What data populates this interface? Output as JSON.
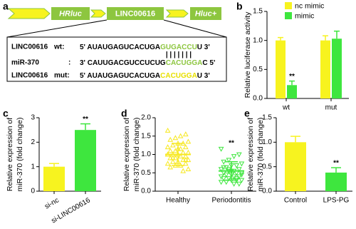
{
  "diagram": {
    "panel_label": "a",
    "boxes": [
      "HRluc",
      "LINC00616",
      "Hluc+"
    ],
    "rows": [
      {
        "name": "LINC00616",
        "tag": "wt:",
        "segments": [
          {
            "text": "5' AUAUGAGUCACUGA"
          },
          {
            "text": "GUGACCU",
            "color": "#8dc63f"
          },
          {
            "text": "U 3'"
          }
        ]
      },
      {
        "name": "miR-370",
        "tag": ":",
        "segments": [
          {
            "text": "3' CAUUGACGUCCUCUG"
          },
          {
            "text": "CACUGGA",
            "color": "#8dc63f"
          },
          {
            "text": "C 5'"
          }
        ]
      },
      {
        "name": "LINC00616",
        "tag": "mut:",
        "segments": [
          {
            "text": "5' AUAUGAGUCACUGA"
          },
          {
            "text": "CACUGGA",
            "color": "#e8e000"
          },
          {
            "text": "U 3'"
          }
        ]
      }
    ],
    "pairing": "| | | | | | |"
  },
  "chart_data": [
    {
      "type": "bar",
      "panel_label": "b",
      "ylabel": [
        "Relative luciferase activity"
      ],
      "categories": [
        "wt",
        "mut"
      ],
      "series": [
        {
          "name": "nc mimic",
          "color": "#f7f31f",
          "values": [
            1.0,
            1.0
          ],
          "errors": [
            0.05,
            0.08
          ],
          "annotations": [
            null,
            null
          ]
        },
        {
          "name": "mimic",
          "color": "#3ee63e",
          "values": [
            0.23,
            1.03
          ],
          "errors": [
            0.07,
            0.13
          ],
          "annotations": [
            "**",
            null
          ]
        }
      ],
      "ylim": [
        0,
        1.5
      ],
      "yticks": [
        {
          "value": 0,
          "label": "0.0"
        },
        {
          "value": 0.5,
          "label": "0.5"
        },
        {
          "value": 1,
          "label": "1.0"
        },
        {
          "value": 1.5,
          "label": "1.5"
        }
      ]
    },
    {
      "type": "bar",
      "panel_label": "c",
      "ylabel": [
        "Relative expression of",
        "miR-370 (fold change)"
      ],
      "categories": [
        "si-nc",
        "si-LINC00616"
      ],
      "values": [
        1.0,
        2.5
      ],
      "errors": [
        0.13,
        0.25
      ],
      "colors": [
        "#f7f31f",
        "#3ee63e"
      ],
      "annotations": [
        null,
        "**"
      ],
      "ylim": [
        0,
        3
      ],
      "yticks": [
        0,
        1,
        2,
        3
      ]
    },
    {
      "type": "dot",
      "panel_label": "d",
      "ylabel": [
        "Relative expression of",
        "miR-370 (fold change)"
      ],
      "categories": [
        "Healthy",
        "Periodontitis"
      ],
      "groups": [
        {
          "color": "#f7e81f",
          "marker": "up",
          "mean": 1.0,
          "sd": 0.3,
          "annotation": null,
          "values": [
            1.65,
            1.55,
            1.5,
            1.45,
            1.4,
            1.35,
            1.3,
            1.3,
            1.25,
            1.2,
            1.2,
            1.15,
            1.1,
            1.1,
            1.05,
            1.05,
            1.0,
            1.0,
            1.0,
            0.95,
            0.95,
            0.9,
            0.9,
            0.85,
            0.85,
            0.8,
            0.8,
            0.75,
            0.75,
            0.7,
            0.7,
            0.65,
            0.6,
            0.55,
            1.15,
            0.9,
            1.0,
            0.85
          ]
        },
        {
          "color": "#3ee63e",
          "marker": "down",
          "mean": 0.55,
          "sd": 0.25,
          "annotation": "**",
          "values": [
            1.15,
            1.0,
            0.95,
            0.85,
            0.8,
            0.75,
            0.7,
            0.7,
            0.65,
            0.6,
            0.6,
            0.55,
            0.55,
            0.5,
            0.5,
            0.5,
            0.45,
            0.45,
            0.4,
            0.4,
            0.4,
            0.35,
            0.35,
            0.3,
            0.3,
            0.3,
            0.25,
            0.25,
            0.2,
            0.2,
            0.6,
            0.65,
            0.45,
            0.35,
            0.55
          ]
        }
      ],
      "ylim": [
        0,
        2
      ],
      "yticks": [
        {
          "value": 0,
          "label": "0.0"
        },
        {
          "value": 0.5,
          "label": "0.5"
        },
        {
          "value": 1,
          "label": "1.0"
        },
        {
          "value": 1.5,
          "label": "1.5"
        },
        {
          "value": 2,
          "label": "2.0"
        }
      ]
    },
    {
      "type": "bar",
      "panel_label": "e",
      "ylabel": [
        "Relative expression of",
        "miR-370 (fold change)"
      ],
      "categories": [
        "Control",
        "LPS-PG"
      ],
      "values": [
        1.0,
        0.38
      ],
      "errors": [
        0.12,
        0.1
      ],
      "colors": [
        "#f7f31f",
        "#3ee63e"
      ],
      "annotations": [
        null,
        "**"
      ],
      "ylim": [
        0,
        1.5
      ],
      "yticks": [
        {
          "value": 0,
          "label": "0.0"
        },
        {
          "value": 0.5,
          "label": "0.5"
        },
        {
          "value": 1,
          "label": "1.0"
        },
        {
          "value": 1.5,
          "label": "1.5"
        }
      ]
    }
  ]
}
